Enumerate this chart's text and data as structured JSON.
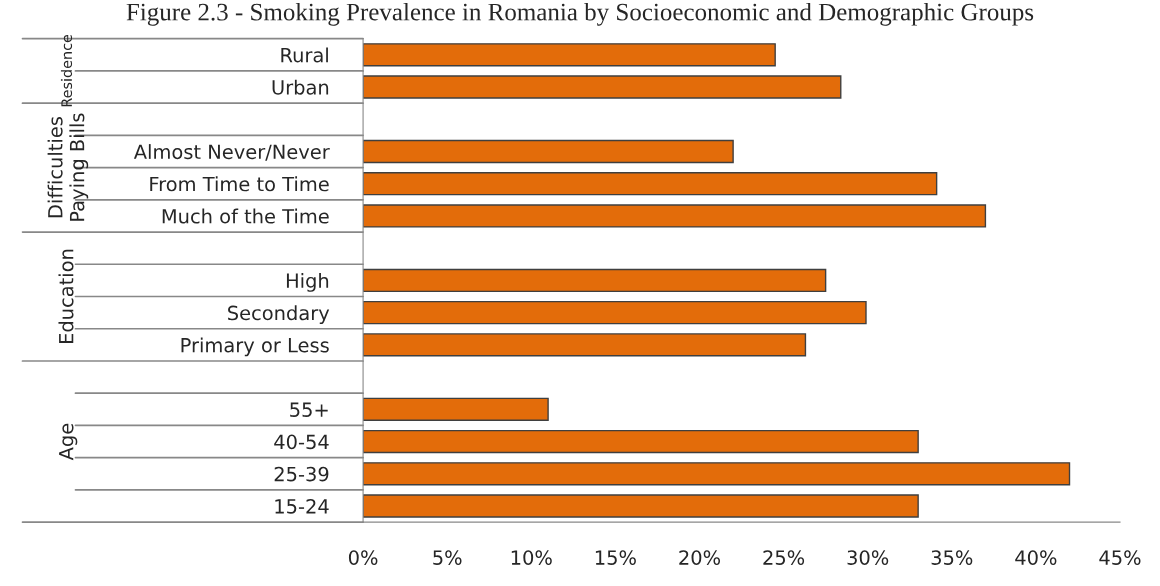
{
  "chart_data": {
    "type": "bar",
    "orientation": "horizontal",
    "title": "Figure 2.3 - Smoking Prevalence in Romania by Socioeconomic and Demographic Groups",
    "categories": [
      "Rural",
      "Urban",
      null,
      "Almost Never/Never",
      "From Time to Time",
      "Much of the Time",
      null,
      "High",
      "Secondary",
      "Primary or Less",
      null,
      "55+",
      "40-54",
      "25-39",
      "15-24"
    ],
    "values": [
      24.5,
      28.4,
      null,
      22.0,
      34.1,
      37.0,
      null,
      27.5,
      29.9,
      26.3,
      null,
      11.0,
      33.0,
      42.0,
      33.0
    ],
    "color": "#e36c0a",
    "annotations": [
      "Residence",
      "Difficulties Paying Bills",
      "Education",
      "Age"
    ],
    "xlim": [
      0,
      45
    ],
    "xticks": [
      {
        "value": 0,
        "label": "0%"
      },
      {
        "value": 5,
        "label": "5%"
      },
      {
        "value": 10,
        "label": "10%"
      },
      {
        "value": 15,
        "label": "15%"
      },
      {
        "value": 20,
        "label": "20%"
      },
      {
        "value": 25,
        "label": "25%"
      },
      {
        "value": 30,
        "label": "30%"
      },
      {
        "value": 35,
        "label": "35%"
      },
      {
        "value": 40,
        "label": "40%"
      },
      {
        "value": 45,
        "label": "45%"
      }
    ],
    "grid": false,
    "legend": false
  }
}
